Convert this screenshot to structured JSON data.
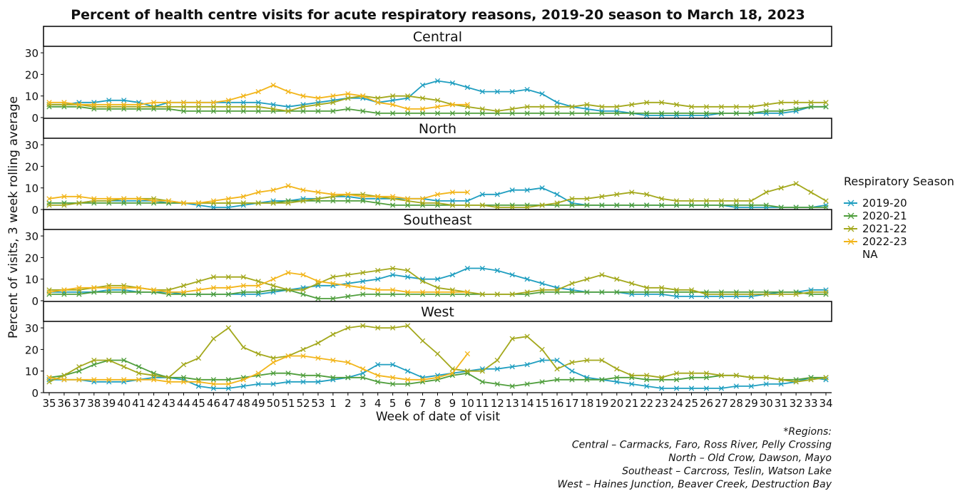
{
  "chart_data": {
    "type": "line",
    "title": "Percent of health centre visits for acute respiratory reasons, 2019-20 season to March 18, 2023",
    "xlabel": "Week of date of visit",
    "ylabel": "Percent of visits, 3 week rolling average",
    "ylim": [
      0,
      33
    ],
    "yticks": [
      0,
      10,
      20,
      30
    ],
    "grid": false,
    "legend_position": "right",
    "legend_title": "Respiratory Season",
    "legend_entries": [
      "2019-20",
      "2020-21",
      "2021-22",
      "2022-23",
      "NA"
    ],
    "categories": [
      "35",
      "36",
      "37",
      "38",
      "39",
      "40",
      "41",
      "42",
      "43",
      "44",
      "45",
      "46",
      "47",
      "48",
      "49",
      "50",
      "51",
      "52",
      "53",
      "1",
      "2",
      "3",
      "4",
      "5",
      "6",
      "7",
      "8",
      "9",
      "10",
      "11",
      "12",
      "13",
      "14",
      "15",
      "16",
      "17",
      "18",
      "19",
      "20",
      "21",
      "22",
      "23",
      "24",
      "25",
      "26",
      "27",
      "28",
      "29",
      "30",
      "31",
      "32",
      "33",
      "34"
    ],
    "series_colors": {
      "2019-20": "#1f9ec0",
      "2020-21": "#4f9e3c",
      "2021-22": "#a3a81c",
      "2022-23": "#f2b51a"
    },
    "panels": [
      {
        "name": "Central",
        "series": [
          {
            "name": "2019-20",
            "values": [
              6,
              6,
              7,
              7,
              8,
              8,
              7,
              5,
              7,
              7,
              7,
              7,
              7,
              7,
              7,
              6,
              5,
              6,
              7,
              8,
              9,
              9,
              7,
              8,
              9,
              15,
              17,
              16,
              14,
              12,
              12,
              12,
              13,
              11,
              7,
              5,
              4,
              3,
              3,
              2,
              1,
              1,
              1,
              1,
              1,
              2,
              2,
              2,
              2,
              2,
              3,
              5,
              5
            ]
          },
          {
            "name": "2020-21",
            "values": [
              5,
              5,
              5,
              4,
              4,
              4,
              4,
              4,
              4,
              3,
              3,
              3,
              3,
              3,
              3,
              3,
              3,
              3,
              3,
              3,
              4,
              3,
              2,
              2,
              2,
              2,
              2,
              2,
              2,
              2,
              2,
              2,
              2,
              2,
              2,
              2,
              2,
              2,
              2,
              2,
              2,
              2,
              2,
              2,
              2,
              2,
              2,
              2,
              3,
              3,
              4,
              5,
              5
            ]
          },
          {
            "name": "2021-22",
            "values": [
              6,
              6,
              6,
              5,
              5,
              5,
              5,
              5,
              5,
              5,
              5,
              5,
              5,
              5,
              5,
              4,
              3,
              5,
              6,
              7,
              9,
              10,
              9,
              10,
              10,
              9,
              8,
              6,
              5,
              4,
              3,
              4,
              5,
              5,
              5,
              5,
              6,
              5,
              5,
              6,
              7,
              7,
              6,
              5,
              5,
              5,
              5,
              5,
              6,
              7,
              7,
              7,
              7
            ]
          },
          {
            "name": "2022-23",
            "values": [
              7,
              7,
              6,
              6,
              6,
              6,
              6,
              7,
              7,
              7,
              7,
              7,
              8,
              10,
              12,
              15,
              12,
              10,
              9,
              10,
              11,
              10,
              7,
              6,
              4,
              4,
              5,
              6,
              6,
              null,
              null,
              null,
              null,
              null,
              null,
              null,
              null,
              null,
              null,
              null,
              null,
              null,
              null,
              null,
              null,
              null,
              null,
              null,
              null,
              null,
              null,
              null,
              null
            ]
          }
        ]
      },
      {
        "name": "North",
        "series": [
          {
            "name": "2019-20",
            "values": [
              3,
              3,
              3,
              4,
              4,
              4,
              4,
              4,
              3,
              3,
              2,
              1,
              1,
              2,
              3,
              4,
              4,
              5,
              5,
              6,
              6,
              5,
              5,
              5,
              5,
              5,
              4,
              4,
              4,
              7,
              7,
              9,
              9,
              10,
              7,
              3,
              2,
              2,
              2,
              2,
              2,
              2,
              2,
              2,
              2,
              2,
              1,
              1,
              1,
              1,
              1,
              1,
              2
            ]
          },
          {
            "name": "2020-21",
            "values": [
              3,
              3,
              3,
              3,
              3,
              3,
              3,
              3,
              3,
              3,
              3,
              3,
              3,
              3,
              3,
              3,
              4,
              4,
              4,
              4,
              4,
              4,
              3,
              2,
              2,
              2,
              2,
              2,
              2,
              2,
              2,
              2,
              2,
              2,
              2,
              2,
              2,
              2,
              2,
              2,
              2,
              2,
              2,
              2,
              2,
              2,
              2,
              2,
              2,
              1,
              1,
              1,
              1
            ]
          },
          {
            "name": "2021-22",
            "values": [
              2,
              2,
              3,
              4,
              4,
              5,
              5,
              5,
              4,
              3,
              3,
              3,
              3,
              3,
              3,
              3,
              3,
              4,
              5,
              6,
              7,
              7,
              6,
              5,
              4,
              3,
              3,
              2,
              2,
              2,
              1,
              1,
              1,
              2,
              3,
              5,
              5,
              6,
              7,
              8,
              7,
              5,
              4,
              4,
              4,
              4,
              4,
              4,
              8,
              10,
              12,
              8,
              4
            ]
          },
          {
            "name": "2022-23",
            "values": [
              5,
              6,
              6,
              5,
              5,
              5,
              5,
              4,
              4,
              3,
              3,
              4,
              5,
              6,
              8,
              9,
              11,
              9,
              8,
              7,
              7,
              6,
              6,
              6,
              5,
              5,
              7,
              8,
              8,
              null,
              null,
              null,
              null,
              null,
              null,
              null,
              null,
              null,
              null,
              null,
              null,
              null,
              null,
              null,
              null,
              null,
              null,
              null,
              null,
              null,
              null,
              null,
              null
            ]
          }
        ]
      },
      {
        "name": "Southeast",
        "series": [
          {
            "name": "2019-20",
            "values": [
              4,
              4,
              4,
              4,
              5,
              5,
              4,
              4,
              4,
              3,
              3,
              3,
              3,
              3,
              3,
              4,
              5,
              6,
              7,
              7,
              8,
              9,
              10,
              12,
              11,
              10,
              10,
              12,
              15,
              15,
              14,
              12,
              10,
              8,
              6,
              5,
              4,
              4,
              4,
              3,
              3,
              3,
              2,
              2,
              2,
              2,
              2,
              2,
              3,
              4,
              4,
              5,
              5
            ]
          },
          {
            "name": "2020-21",
            "values": [
              3,
              3,
              3,
              4,
              4,
              4,
              4,
              4,
              3,
              3,
              3,
              3,
              3,
              4,
              4,
              5,
              5,
              3,
              1,
              1,
              2,
              3,
              3,
              3,
              3,
              3,
              3,
              3,
              3,
              3,
              3,
              3,
              3,
              4,
              4,
              4,
              4,
              4,
              4,
              4,
              4,
              4,
              4,
              4,
              4,
              4,
              4,
              4,
              4,
              4,
              4,
              3,
              3
            ]
          },
          {
            "name": "2021-22",
            "values": [
              5,
              5,
              5,
              6,
              7,
              7,
              6,
              5,
              5,
              7,
              9,
              11,
              11,
              11,
              9,
              7,
              5,
              5,
              8,
              11,
              12,
              13,
              14,
              15,
              14,
              9,
              6,
              5,
              4,
              3,
              3,
              3,
              4,
              5,
              5,
              8,
              10,
              12,
              10,
              8,
              6,
              6,
              5,
              5,
              3,
              3,
              3,
              3,
              3,
              3,
              3,
              4,
              4
            ]
          },
          {
            "name": "2022-23",
            "values": [
              4,
              5,
              6,
              6,
              6,
              6,
              6,
              5,
              4,
              4,
              5,
              6,
              6,
              7,
              7,
              10,
              13,
              12,
              9,
              8,
              7,
              6,
              5,
              5,
              4,
              4,
              4,
              4,
              4,
              null,
              null,
              null,
              null,
              null,
              null,
              null,
              null,
              null,
              null,
              null,
              null,
              null,
              null,
              null,
              null,
              null,
              null,
              null,
              null,
              null,
              null,
              null,
              null
            ]
          }
        ]
      },
      {
        "name": "West",
        "series": [
          {
            "name": "2019-20",
            "values": [
              6,
              6,
              6,
              5,
              5,
              5,
              6,
              7,
              7,
              6,
              3,
              2,
              2,
              3,
              4,
              4,
              5,
              5,
              5,
              6,
              7,
              9,
              13,
              13,
              10,
              7,
              8,
              9,
              10,
              11,
              11,
              12,
              13,
              15,
              15,
              10,
              7,
              6,
              5,
              4,
              3,
              2,
              2,
              2,
              2,
              2,
              3,
              3,
              4,
              4,
              5,
              7,
              6
            ]
          },
          {
            "name": "2020-21",
            "values": [
              7,
              8,
              10,
              13,
              15,
              15,
              12,
              9,
              7,
              7,
              6,
              6,
              6,
              7,
              8,
              9,
              9,
              8,
              8,
              7,
              7,
              7,
              5,
              4,
              4,
              5,
              6,
              8,
              9,
              5,
              4,
              3,
              4,
              5,
              6,
              6,
              6,
              6,
              7,
              7,
              6,
              6,
              6,
              7,
              7,
              8,
              8,
              7,
              7,
              6,
              6,
              7,
              7
            ]
          },
          {
            "name": "2021-22",
            "values": [
              5,
              8,
              12,
              15,
              15,
              12,
              9,
              8,
              7,
              13,
              16,
              25,
              30,
              21,
              18,
              16,
              17,
              20,
              23,
              27,
              30,
              31,
              30,
              30,
              31,
              24,
              18,
              11,
              10,
              10,
              15,
              25,
              26,
              20,
              11,
              14,
              15,
              15,
              11,
              8,
              8,
              7,
              9,
              9,
              9,
              8,
              8,
              7,
              7,
              6,
              5,
              6,
              7
            ]
          },
          {
            "name": "2022-23",
            "values": [
              7,
              6,
              6,
              6,
              6,
              6,
              6,
              6,
              5,
              5,
              5,
              4,
              4,
              6,
              9,
              14,
              17,
              17,
              16,
              15,
              14,
              11,
              8,
              7,
              6,
              6,
              7,
              9,
              18,
              null,
              null,
              null,
              null,
              null,
              null,
              null,
              null,
              null,
              null,
              null,
              null,
              null,
              null,
              null,
              null,
              null,
              null,
              null,
              null,
              null,
              null,
              null,
              null
            ]
          }
        ]
      }
    ],
    "annotations": [
      "*Regions:",
      "Central – Carmacks, Faro, Ross River, Pelly Crossing",
      "North – Old Crow, Dawson, Mayo",
      "Southeast – Carcross, Teslin, Watson Lake",
      "West – Haines Junction, Beaver Creek, Destruction Bay"
    ]
  }
}
